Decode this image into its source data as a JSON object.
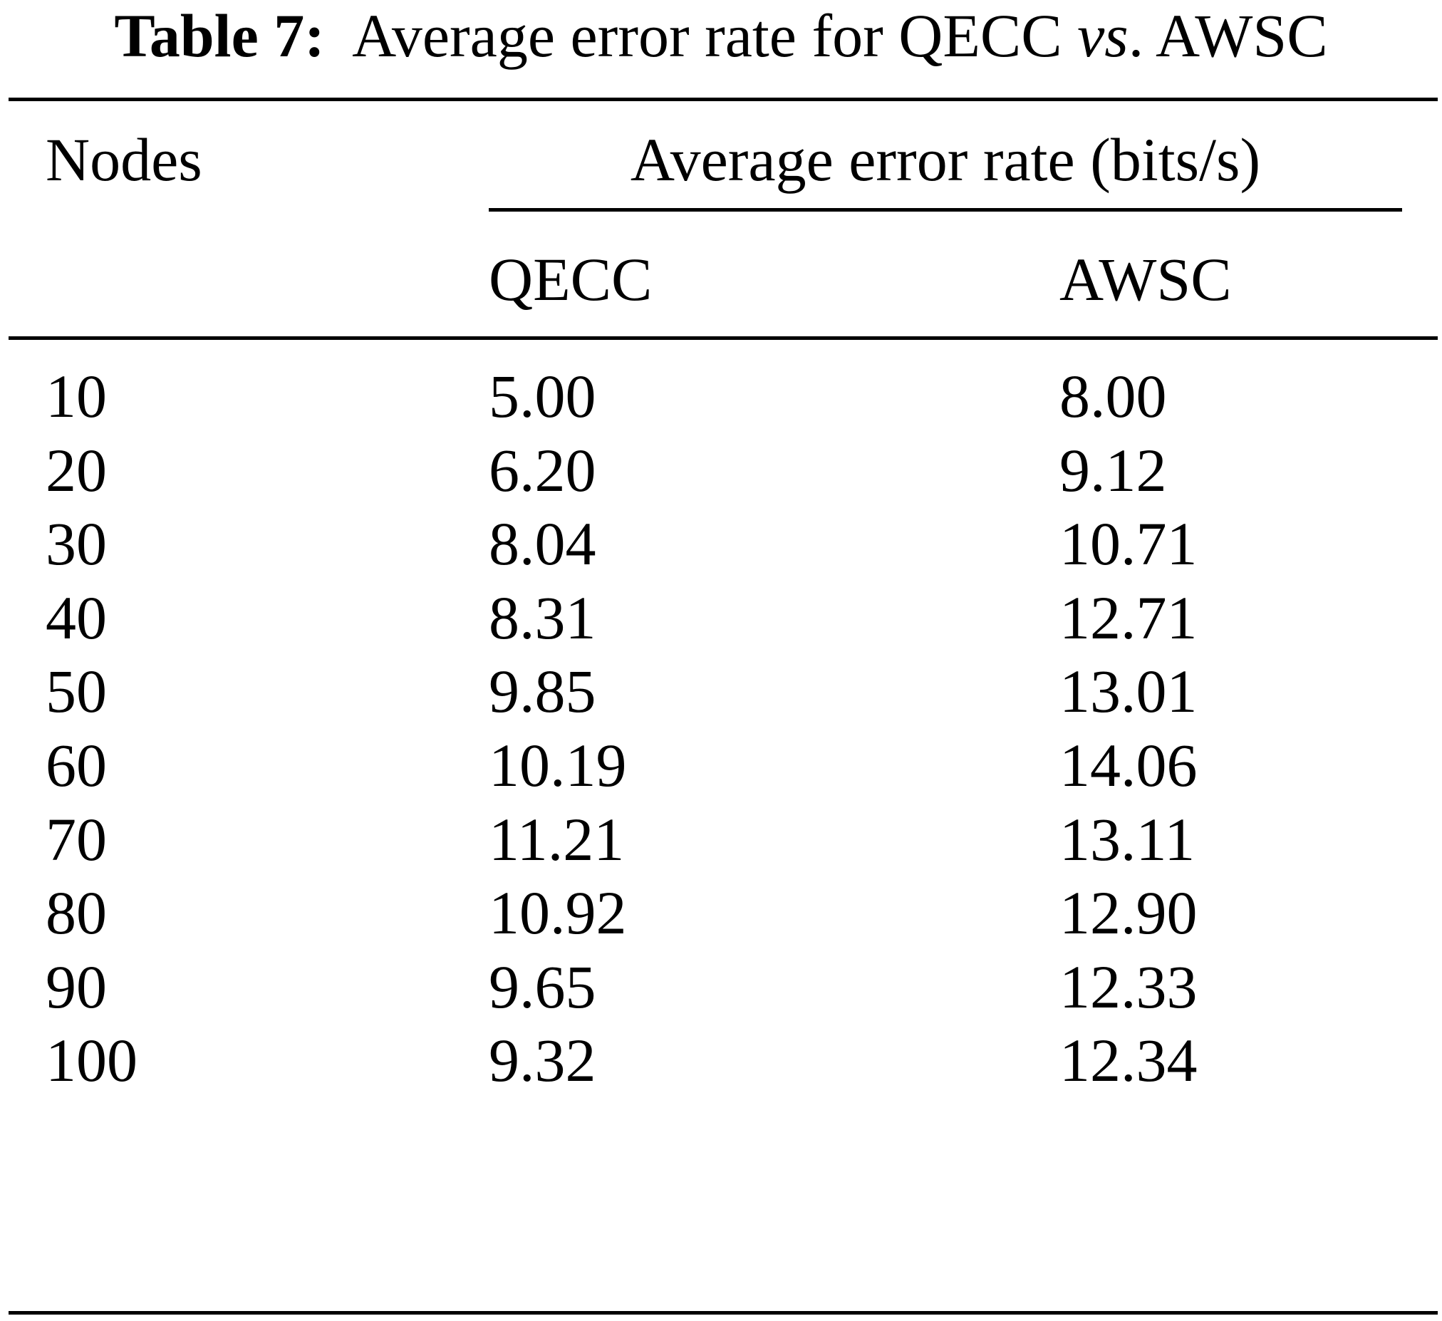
{
  "caption": {
    "label": "Table 7:",
    "text_before": "Average error rate for QECC ",
    "text_italic": "vs",
    "text_after": ". AWSC"
  },
  "table": {
    "header": {
      "nodes": "Nodes",
      "group": "Average error rate (bits/s)",
      "col_qecc": "QECC",
      "col_awsc": "AWSC"
    },
    "rows": [
      {
        "nodes": "10",
        "qecc": "5.00",
        "awsc": "8.00"
      },
      {
        "nodes": "20",
        "qecc": "6.20",
        "awsc": "9.12"
      },
      {
        "nodes": "30",
        "qecc": "8.04",
        "awsc": "10.71"
      },
      {
        "nodes": "40",
        "qecc": "8.31",
        "awsc": "12.71"
      },
      {
        "nodes": "50",
        "qecc": "9.85",
        "awsc": "13.01"
      },
      {
        "nodes": "60",
        "qecc": "10.19",
        "awsc": "14.06"
      },
      {
        "nodes": "70",
        "qecc": "11.21",
        "awsc": "13.11"
      },
      {
        "nodes": "80",
        "qecc": "10.92",
        "awsc": "12.90"
      },
      {
        "nodes": "90",
        "qecc": "9.65",
        "awsc": "12.33"
      },
      {
        "nodes": "100",
        "qecc": "9.32",
        "awsc": "12.34"
      }
    ]
  }
}
